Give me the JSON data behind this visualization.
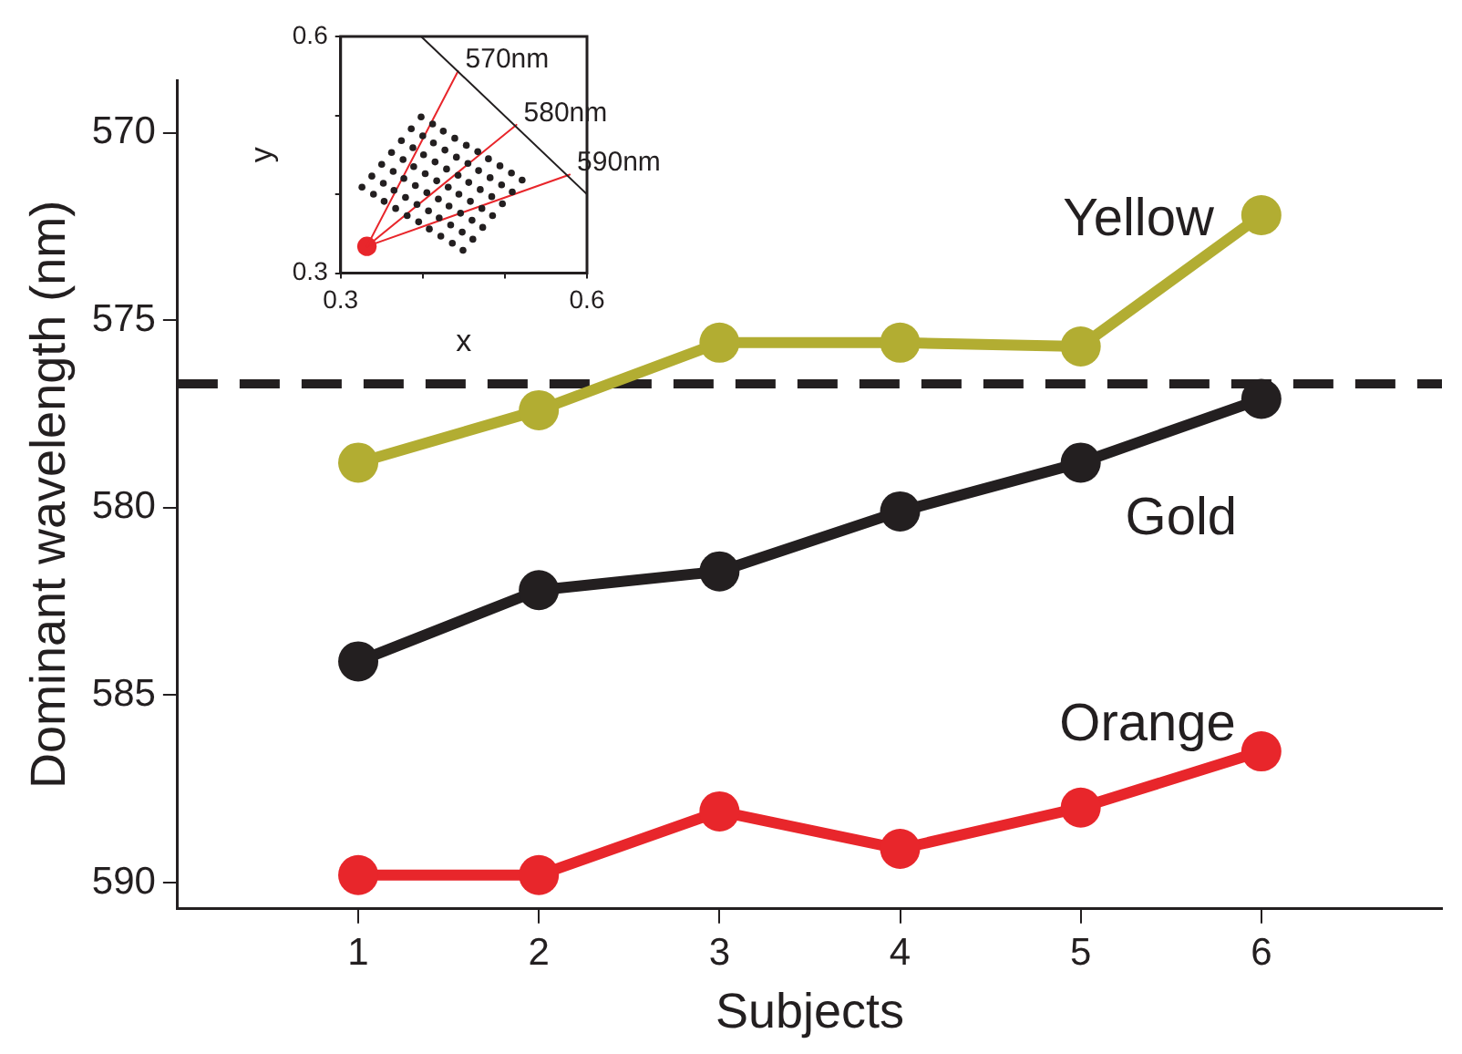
{
  "chart_data": [
    {
      "type": "line",
      "xlabel": "Subjects",
      "ylabel": "Dominant wavelength (nm)",
      "x": [
        1,
        2,
        3,
        4,
        5,
        6
      ],
      "xlim": [
        0,
        7
      ],
      "xticks": [
        1,
        2,
        3,
        4,
        5,
        6
      ],
      "ylim": [
        590.7,
        568.6
      ],
      "yticks": [
        570,
        575,
        580,
        585,
        590
      ],
      "marker": "circle",
      "grid": false,
      "legend": false,
      "series": [
        {
          "name": "Yellow",
          "color": "#b2ad32",
          "values": [
            578.8,
            577.4,
            575.6,
            575.6,
            575.7,
            572.2
          ]
        },
        {
          "name": "Gold",
          "color": "#231f20",
          "values": [
            584.1,
            582.2,
            581.7,
            580.1,
            578.8,
            577.1
          ]
        },
        {
          "name": "Orange",
          "color": "#e8262b",
          "values": [
            589.8,
            589.8,
            588.1,
            589.1,
            588.0,
            586.5
          ]
        }
      ],
      "ref_lines": [
        {
          "axis": "y",
          "value": 576.7,
          "color": "#231f20",
          "line_style": "dashed"
        }
      ]
    },
    {
      "type": "scatter",
      "xlabel": "x",
      "ylabel": "y",
      "xlim": [
        0.3,
        0.6
      ],
      "ylim": [
        0.3,
        0.6
      ],
      "xticks": [
        0.3,
        {
          "value": 0.4,
          "label": null
        },
        {
          "value": 0.5,
          "label": null
        },
        0.6
      ],
      "yticks": [
        0.3,
        {
          "value": 0.4,
          "label": null
        },
        {
          "value": 0.5,
          "label": null
        },
        0.6
      ],
      "grid": false,
      "legend": false,
      "marker": "circle",
      "series": [
        {
          "type": "scatter",
          "color": "#231f20",
          "x": [
            0.398,
            0.412,
            0.425,
            0.439,
            0.453,
            0.467,
            0.48,
            0.494,
            0.508,
            0.521,
            0.386,
            0.4,
            0.413,
            0.427,
            0.441,
            0.455,
            0.468,
            0.482,
            0.496,
            0.509,
            0.374,
            0.388,
            0.401,
            0.415,
            0.429,
            0.443,
            0.456,
            0.47,
            0.484,
            0.497,
            0.362,
            0.376,
            0.389,
            0.403,
            0.417,
            0.431,
            0.444,
            0.458,
            0.472,
            0.485,
            0.35,
            0.364,
            0.377,
            0.391,
            0.405,
            0.419,
            0.432,
            0.446,
            0.46,
            0.473,
            0.338,
            0.352,
            0.365,
            0.379,
            0.393,
            0.407,
            0.42,
            0.434,
            0.448,
            0.461,
            0.326,
            0.34,
            0.353,
            0.367,
            0.381,
            0.395,
            0.408,
            0.422,
            0.436,
            0.449
          ],
          "values": [
            0.498,
            0.489,
            0.48,
            0.471,
            0.462,
            0.454,
            0.445,
            0.436,
            0.427,
            0.418,
            0.483,
            0.474,
            0.465,
            0.456,
            0.447,
            0.439,
            0.43,
            0.421,
            0.412,
            0.403,
            0.468,
            0.459,
            0.45,
            0.441,
            0.432,
            0.424,
            0.415,
            0.406,
            0.397,
            0.388,
            0.453,
            0.444,
            0.435,
            0.426,
            0.417,
            0.409,
            0.4,
            0.391,
            0.382,
            0.373,
            0.438,
            0.429,
            0.42,
            0.411,
            0.402,
            0.394,
            0.385,
            0.376,
            0.367,
            0.358,
            0.423,
            0.414,
            0.405,
            0.396,
            0.387,
            0.379,
            0.37,
            0.361,
            0.352,
            0.343,
            0.409,
            0.4,
            0.391,
            0.382,
            0.373,
            0.365,
            0.356,
            0.347,
            0.338,
            0.329
          ]
        },
        {
          "type": "line",
          "color": "#231f20",
          "marker": "none",
          "x": [
            0.398,
            0.6
          ],
          "values": [
            0.6,
            0.4
          ]
        },
        {
          "type": "line",
          "color": "#e8262b",
          "marker": "none",
          "x": [
            0.332,
            0.443
          ],
          "values": [
            0.334,
            0.556
          ]
        },
        {
          "type": "line",
          "color": "#e8262b",
          "marker": "none",
          "x": [
            0.332,
            0.514
          ],
          "values": [
            0.334,
            0.488
          ]
        },
        {
          "type": "line",
          "color": "#e8262b",
          "marker": "none",
          "x": [
            0.332,
            0.579
          ],
          "values": [
            0.334,
            0.425
          ]
        },
        {
          "type": "scatter",
          "color": "#e8262b",
          "x": [
            0.332
          ],
          "values": [
            0.334
          ]
        }
      ],
      "annotations": [
        {
          "text": "570nm",
          "x": 0.443,
          "y": 0.556
        },
        {
          "text": "580nm",
          "x": 0.514,
          "y": 0.488
        },
        {
          "text": "590nm",
          "x": 0.579,
          "y": 0.425
        }
      ]
    }
  ]
}
